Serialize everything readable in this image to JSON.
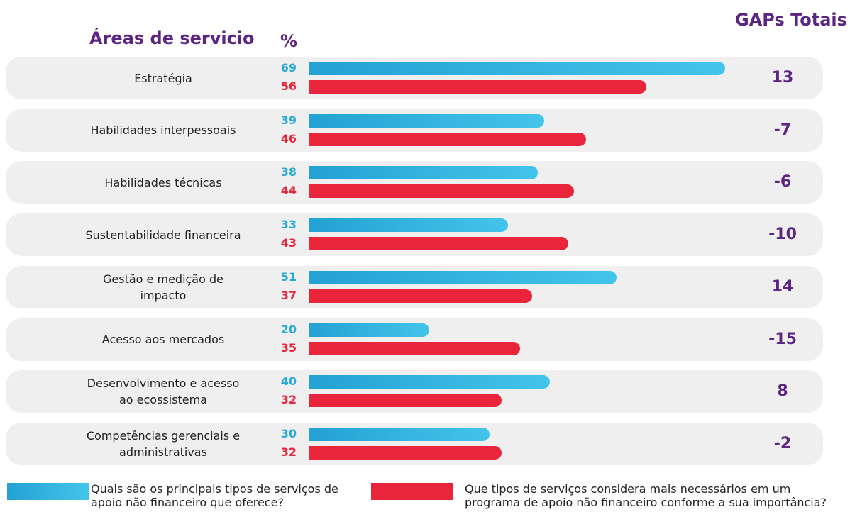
{
  "chart_data": {
    "type": "bar",
    "orientation": "horizontal",
    "category_header": "Áreas de servicio",
    "value_header": "%",
    "gap_header": "GAPs Totais",
    "categories": [
      "Estratégia",
      "Habilidades interpessoais",
      "Habilidades técnicas",
      "Sustentabilidade financeira",
      "Gestão e medição de\nimpacto",
      "Acesso aos mercados",
      "Desenvolvimento e acesso\nao ecossistema",
      "Competências gerenciais e\nadministrativas"
    ],
    "series": [
      {
        "name": "Quais são os principais tipos de serviços de\napoio não financeiro que oferece?",
        "color": "#29a9d8",
        "values": [
          69,
          39,
          38,
          33,
          51,
          20,
          40,
          30
        ]
      },
      {
        "name": "Que tipos de serviços considera mais necessários em um\nprograma de apoio não financeiro conforme a sua importância?",
        "color": "#e8253b",
        "values": [
          56,
          46,
          44,
          43,
          37,
          35,
          32,
          32
        ]
      }
    ],
    "gaps": [
      13,
      -7,
      -6,
      -10,
      14,
      -15,
      8,
      -2
    ],
    "xlim": [
      0,
      70
    ]
  }
}
